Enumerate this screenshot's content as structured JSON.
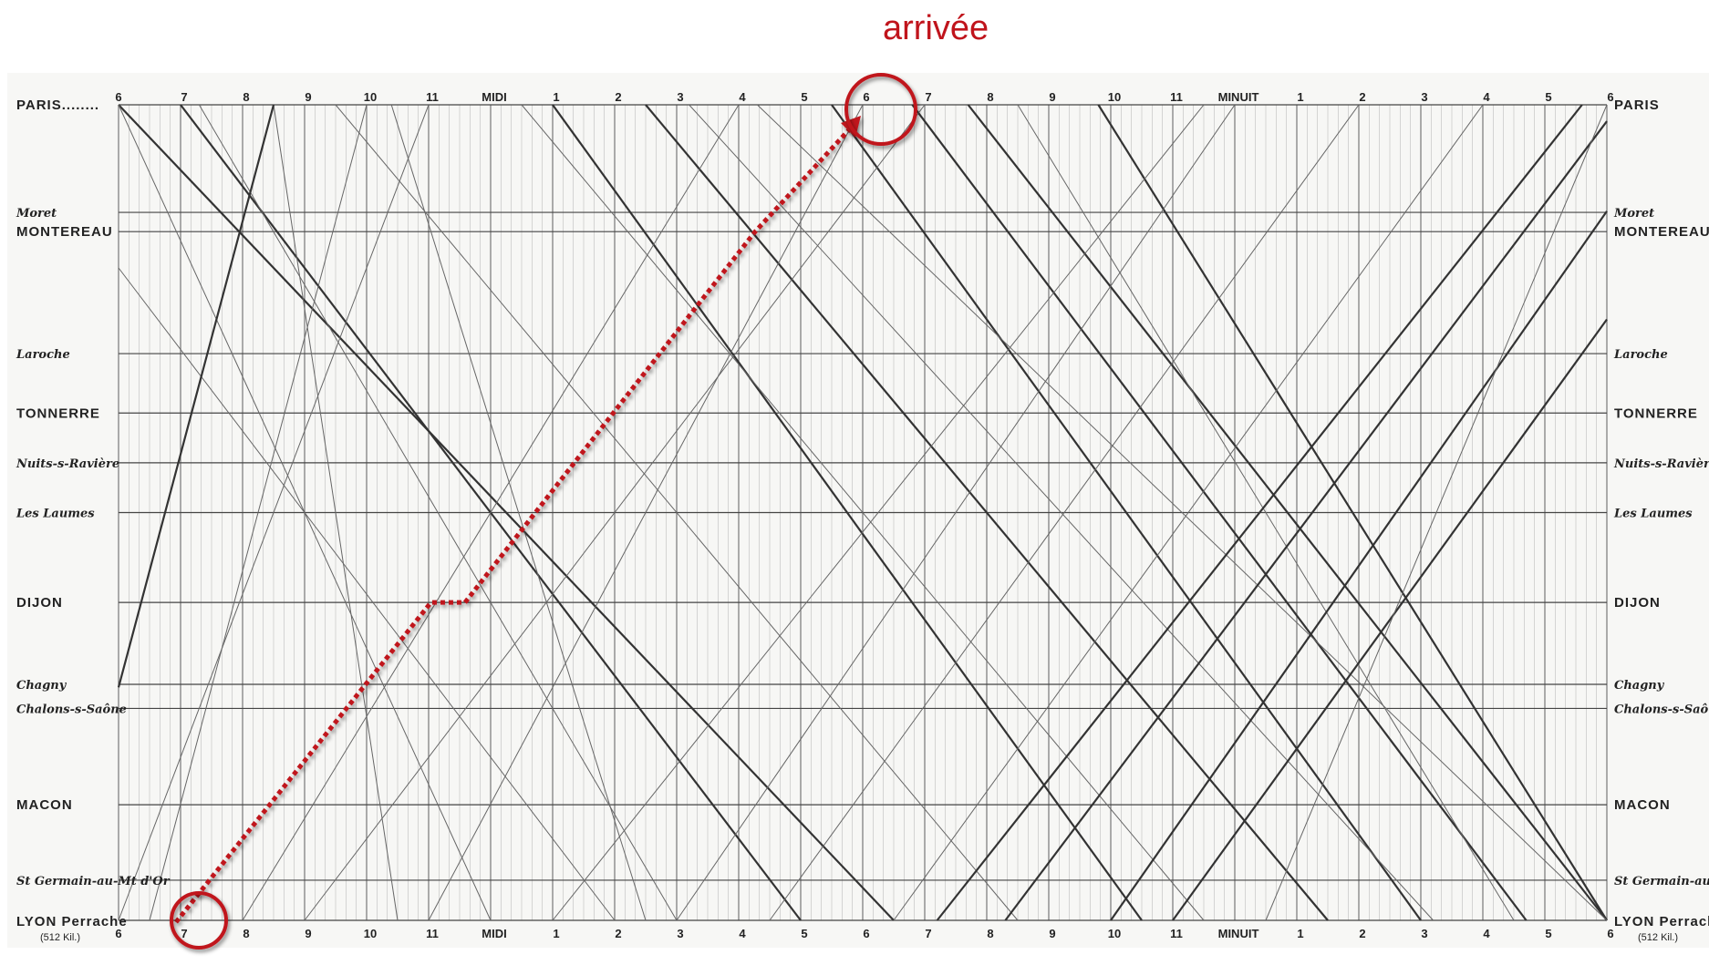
{
  "annotation": {
    "label": "arrivée",
    "color": "#c0141c"
  },
  "chart_data": {
    "type": "line",
    "x_ticks_top": [
      "6",
      "7",
      "8",
      "9",
      "10",
      "11",
      "MIDI",
      "1",
      "2",
      "3",
      "4",
      "5",
      "6",
      "7",
      "8",
      "9",
      "10",
      "11",
      "MINUIT",
      "1",
      "2",
      "3",
      "4",
      "5",
      "6"
    ],
    "x_ticks_bottom": [
      "6",
      "7",
      "8",
      "9",
      "10",
      "11",
      "MIDI",
      "1",
      "2",
      "3",
      "4",
      "5",
      "6",
      "7",
      "8",
      "9",
      "10",
      "11",
      "MINUIT",
      "1",
      "2",
      "3",
      "4",
      "5",
      "6"
    ],
    "x_unit_hours_from_6am": [
      0,
      1,
      2,
      3,
      4,
      5,
      6,
      7,
      8,
      9,
      10,
      11,
      12,
      13,
      14,
      15,
      16,
      17,
      18,
      19,
      20,
      21,
      22,
      23,
      24
    ],
    "stations": [
      {
        "left": "PARIS........",
        "right": "PARIS",
        "km": 0,
        "style": "caps"
      },
      {
        "left": "Moret",
        "right": "Moret",
        "km": 67,
        "style": "ital"
      },
      {
        "left": "MONTEREAU",
        "right": "MONTEREAU",
        "km": 79,
        "style": "caps"
      },
      {
        "left": "Laroche",
        "right": "Laroche",
        "km": 155,
        "style": "ital"
      },
      {
        "left": "TONNERRE",
        "right": "TONNERRE",
        "km": 192,
        "style": "caps"
      },
      {
        "left": "Nuits-s-Ravière",
        "right": "Nuits-s-Ravière",
        "km": 223,
        "style": "ital"
      },
      {
        "left": "Les Laumes",
        "right": "Les Laumes",
        "km": 254,
        "style": "ital"
      },
      {
        "left": "DIJON",
        "right": "DIJON",
        "km": 310,
        "style": "caps"
      },
      {
        "left": "Chagny",
        "right": "Chagny",
        "km": 361,
        "style": "ital"
      },
      {
        "left": "Chalons-s-Saône",
        "right": "Chalons-s-Saône",
        "km": 376,
        "style": "ital"
      },
      {
        "left": "MACON",
        "right": "MACON",
        "km": 436,
        "style": "caps"
      },
      {
        "left": "St Germain-au-Mt d'Or",
        "right": "St Germain-au-Mt d'Or",
        "km": 483,
        "style": "ital"
      },
      {
        "left": "LYON Perrache",
        "right": "LYON Perrache",
        "km": 508,
        "style": "caps"
      }
    ],
    "lyon_note": "(512 Kil.)",
    "ylim_km": [
      0,
      508
    ],
    "xlim_hours": [
      0,
      24
    ],
    "grid": true,
    "series_southbound": [
      {
        "t": [
          1,
          11
        ],
        "weight": "bold"
      },
      {
        "t": [
          0,
          12.5
        ],
        "weight": "bold"
      },
      {
        "t": [
          7,
          16.5
        ],
        "weight": "bold"
      },
      {
        "t": [
          8.5,
          19.5
        ],
        "weight": "bold"
      },
      {
        "t": [
          11.5,
          21
        ],
        "weight": "bold"
      },
      {
        "t": [
          12.8,
          22.7
        ],
        "weight": "bold"
      },
      {
        "t": [
          13.7,
          24
        ],
        "weight": "bold"
      },
      {
        "t": [
          15.8,
          24
        ],
        "weight": "bold"
      },
      {
        "t": [
          1.3,
          9
        ],
        "weight": "thin"
      },
      {
        "t": [
          3.5,
          14.5
        ],
        "weight": "thin"
      },
      {
        "t": [
          6.5,
          17.5
        ],
        "weight": "thin"
      },
      {
        "t": [
          9.2,
          21.2
        ],
        "weight": "thin"
      },
      {
        "t": [
          10.3,
          24
        ],
        "weight": "thin"
      },
      {
        "t": [
          14.5,
          22.5
        ],
        "weight": "thin"
      },
      {
        "t": [
          0,
          6
        ],
        "weight": "thin"
      },
      {
        "t": [
          -2,
          8
        ],
        "weight": "thin"
      },
      {
        "t": [
          2.5,
          4.5
        ],
        "weight": "thin"
      },
      {
        "t": [
          4.4,
          8.5
        ],
        "weight": "thin"
      }
    ],
    "series_northbound": [
      {
        "t": [
          1,
          12
        ],
        "weight": "dotted-red-highlight"
      },
      {
        "t": [
          13.2,
          23.6
        ],
        "weight": "bold"
      },
      {
        "t": [
          14.3,
          24.2
        ],
        "weight": "bold"
      },
      {
        "t": [
          16,
          25.2
        ],
        "weight": "bold"
      },
      {
        "t": [
          17,
          26.5
        ],
        "weight": "bold"
      },
      {
        "t": [
          -1,
          2.5
        ],
        "weight": "bold"
      },
      {
        "t": [
          0,
          5
        ],
        "weight": "thin"
      },
      {
        "t": [
          2,
          10
        ],
        "weight": "thin"
      },
      {
        "t": [
          3,
          13
        ],
        "weight": "thin"
      },
      {
        "t": [
          5,
          12
        ],
        "weight": "thin"
      },
      {
        "t": [
          7,
          17.5
        ],
        "weight": "thin"
      },
      {
        "t": [
          9,
          18
        ],
        "weight": "thin"
      },
      {
        "t": [
          10.5,
          20
        ],
        "weight": "thin"
      },
      {
        "t": [
          12.5,
          22
        ],
        "weight": "thin"
      },
      {
        "t": [
          18.5,
          24
        ],
        "weight": "thin"
      },
      {
        "t": [
          0.5,
          4
        ],
        "weight": "thin"
      }
    ],
    "highlight": {
      "label": "arrivée",
      "departure_hour": 1,
      "arrival_hour": 12,
      "color": "#c0141c"
    }
  },
  "icons": {
    "start_circle": "circle-marker",
    "end_circle": "circle-marker",
    "arrow": "arrow-head"
  }
}
